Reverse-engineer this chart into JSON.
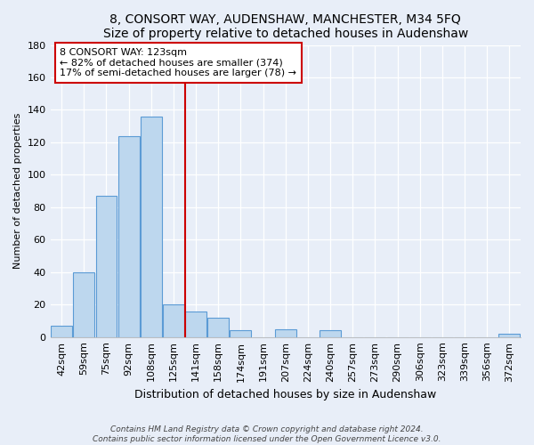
{
  "title": "8, CONSORT WAY, AUDENSHAW, MANCHESTER, M34 5FQ",
  "subtitle": "Size of property relative to detached houses in Audenshaw",
  "xlabel": "Distribution of detached houses by size in Audenshaw",
  "ylabel": "Number of detached properties",
  "bar_labels": [
    "42sqm",
    "59sqm",
    "75sqm",
    "92sqm",
    "108sqm",
    "125sqm",
    "141sqm",
    "158sqm",
    "174sqm",
    "191sqm",
    "207sqm",
    "224sqm",
    "240sqm",
    "257sqm",
    "273sqm",
    "290sqm",
    "306sqm",
    "323sqm",
    "339sqm",
    "356sqm",
    "372sqm"
  ],
  "bar_values": [
    7,
    40,
    87,
    124,
    136,
    20,
    16,
    12,
    4,
    0,
    5,
    0,
    4,
    0,
    0,
    0,
    0,
    0,
    0,
    0,
    2
  ],
  "bar_color": "#bdd7ee",
  "bar_edge_color": "#5b9bd5",
  "vline_color": "#cc0000",
  "vline_x": 5.5,
  "ylim": [
    0,
    180
  ],
  "yticks": [
    0,
    20,
    40,
    60,
    80,
    100,
    120,
    140,
    160,
    180
  ],
  "annotation_title": "8 CONSORT WAY: 123sqm",
  "annotation_line1": "← 82% of detached houses are smaller (374)",
  "annotation_line2": "17% of semi-detached houses are larger (78) →",
  "annotation_box_color": "#ffffff",
  "annotation_box_edge": "#cc0000",
  "footer_line1": "Contains HM Land Registry data © Crown copyright and database right 2024.",
  "footer_line2": "Contains public sector information licensed under the Open Government Licence v3.0.",
  "background_color": "#e8eef8",
  "plot_background": "#e8eef8",
  "grid_color": "#ffffff",
  "title_fontsize": 10,
  "subtitle_fontsize": 9,
  "xlabel_fontsize": 9,
  "ylabel_fontsize": 8,
  "tick_fontsize": 8,
  "annotation_fontsize": 8,
  "footer_fontsize": 6.5
}
